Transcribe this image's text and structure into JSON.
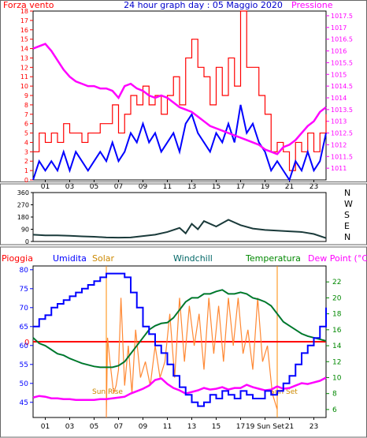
{
  "chart_data": [
    {
      "type": "line",
      "title": "24 hour graph day : 05 Maggio 2020",
      "left_axis_label": "Forza vento",
      "right_axis_label": "Pressione",
      "x_ticks": [
        "01",
        "03",
        "05",
        "07",
        "09",
        "11",
        "13",
        "15",
        "17",
        "19",
        "21",
        "23"
      ],
      "y_left_ticks": [
        "0",
        "1",
        "2",
        "3",
        "4",
        "5",
        "6",
        "7",
        "8",
        "9",
        "10",
        "11",
        "12",
        "13",
        "14",
        "15",
        "16",
        "17",
        "18"
      ],
      "y_right_ticks": [
        "1011",
        "1011.5",
        "1012",
        "1012.5",
        "1013",
        "1013.5",
        "1014",
        "1014.5",
        "1015",
        "1015.5",
        "1016",
        "1016.5",
        "1017",
        "1017.5"
      ],
      "ylim_left": [
        0,
        18
      ],
      "ylim_right": [
        1010.5,
        1017.7
      ],
      "xlim": [
        0,
        24
      ],
      "colors": {
        "gust": "#ff0000",
        "wind": "#0000ff",
        "pressure": "#ff00ff",
        "left_axis": "#ff0000",
        "right_axis": "#ff00ff",
        "title": "#0000cc"
      },
      "series": [
        {
          "key": "pressure",
          "x": [
            0,
            0.5,
            1,
            1.5,
            2,
            2.5,
            3,
            3.5,
            4,
            4.5,
            5,
            5.5,
            6,
            6.5,
            7,
            7.5,
            8,
            8.5,
            9,
            9.5,
            10,
            10.5,
            11,
            11.5,
            12,
            12.5,
            13,
            13.5,
            14,
            14.5,
            15,
            15.5,
            16,
            16.5,
            17,
            17.5,
            18,
            18.5,
            19,
            19.5,
            20,
            20.5,
            21,
            21.5,
            22,
            22.5,
            23,
            23.5,
            24
          ],
          "y": [
            1016.1,
            1016.2,
            1016.3,
            1016.0,
            1015.6,
            1015.2,
            1014.9,
            1014.7,
            1014.6,
            1014.5,
            1014.5,
            1014.4,
            1014.4,
            1014.3,
            1014.0,
            1014.5,
            1014.6,
            1014.4,
            1014.3,
            1014.1,
            1014.0,
            1014.1,
            1014.0,
            1013.8,
            1013.6,
            1013.5,
            1013.4,
            1013.2,
            1013.0,
            1012.8,
            1012.7,
            1012.6,
            1012.5,
            1012.4,
            1012.3,
            1012.2,
            1012.1,
            1012.0,
            1011.8,
            1011.7,
            1011.6,
            1011.9,
            1012.0,
            1012.2,
            1012.5,
            1012.8,
            1013.0,
            1013.4,
            1013.6
          ]
        },
        {
          "key": "wind",
          "x": [
            0,
            0.5,
            1,
            1.5,
            2,
            2.5,
            3,
            3.5,
            4,
            4.5,
            5,
            5.5,
            6,
            6.5,
            7,
            7.5,
            8,
            8.5,
            9,
            9.5,
            10,
            10.5,
            11,
            11.5,
            12,
            12.5,
            13,
            13.5,
            14,
            14.5,
            15,
            15.5,
            16,
            16.5,
            17,
            17.5,
            18,
            18.5,
            19,
            19.5,
            20,
            20.5,
            21,
            21.5,
            22,
            22.5,
            23,
            23.5,
            24
          ],
          "y": [
            0,
            2,
            1,
            2,
            1,
            3,
            1,
            3,
            2,
            1,
            2,
            3,
            2,
            4,
            2,
            3,
            5,
            4,
            6,
            4,
            5,
            3,
            4,
            5,
            3,
            6,
            7,
            5,
            4,
            3,
            5,
            4,
            6,
            4,
            8,
            5,
            6,
            4,
            3,
            1,
            2,
            1,
            0,
            2,
            1,
            3,
            1,
            2,
            5
          ]
        },
        {
          "key": "gust",
          "x": [
            0,
            0.5,
            1,
            1.5,
            2,
            2.5,
            3,
            3.5,
            4,
            4.5,
            5,
            5.5,
            6,
            6.5,
            7,
            7.5,
            8,
            8.5,
            9,
            9.5,
            10,
            10.5,
            11,
            11.5,
            12,
            12.5,
            13,
            13.5,
            14,
            14.5,
            15,
            15.5,
            16,
            16.5,
            17,
            17.5,
            18,
            18.5,
            19,
            19.5,
            20,
            20.5,
            21,
            21.5,
            22,
            22.5,
            23,
            23.5,
            24
          ],
          "y": [
            3,
            5,
            4,
            5,
            4,
            6,
            5,
            5,
            4,
            5,
            5,
            6,
            6,
            8,
            5,
            7,
            9,
            8,
            10,
            8,
            9,
            7,
            9,
            11,
            8,
            13,
            15,
            12,
            11,
            8,
            12,
            9,
            13,
            10,
            18,
            12,
            12,
            9,
            7,
            3,
            4,
            3,
            1,
            4,
            3,
            5,
            3,
            5,
            7
          ]
        }
      ]
    },
    {
      "type": "line",
      "y_ticks": [
        "0",
        "90",
        "180",
        "270",
        "360"
      ],
      "compass": [
        "N",
        "W",
        "S",
        "E",
        "N"
      ],
      "ylim": [
        0,
        360
      ],
      "xlim": [
        0,
        24
      ],
      "colors": {
        "line": "#1a3a3a",
        "axis": "#000000"
      },
      "series": [
        {
          "key": "direction",
          "x": [
            0,
            1,
            2,
            3,
            4,
            5,
            6,
            7,
            8,
            9,
            10,
            11,
            12,
            12.5,
            13,
            13.5,
            14,
            15,
            16,
            17,
            18,
            19,
            20,
            21,
            22,
            23,
            24
          ],
          "y": [
            50,
            45,
            45,
            42,
            38,
            35,
            30,
            28,
            30,
            40,
            50,
            70,
            100,
            60,
            130,
            90,
            150,
            110,
            160,
            120,
            95,
            85,
            80,
            75,
            70,
            55,
            25
          ]
        }
      ]
    },
    {
      "type": "line",
      "legend": [
        "Pioggia",
        "Umidita",
        "Solar",
        "Windchill",
        "Temperatura",
        "Dew Point (°C)"
      ],
      "x_ticks": [
        "01",
        "03",
        "05",
        "07",
        "09",
        "11",
        "13",
        "15",
        "17",
        "19 Sun Set",
        "21",
        "23"
      ],
      "y_left_ticks": [
        "45",
        "50",
        "55",
        "60",
        "65",
        "70",
        "75",
        "80"
      ],
      "y_right_ticks": [
        "6",
        "8",
        "10",
        "12",
        "14",
        "16",
        "18",
        "20",
        "22"
      ],
      "rain_label": "0",
      "annotations": {
        "sunrise": "Sun Rise",
        "sunset": "Sun Set"
      },
      "ylim_left": [
        41,
        81
      ],
      "ylim_right": [
        5,
        24
      ],
      "xlim": [
        0,
        24
      ],
      "colors": {
        "rain": "#ff0000",
        "humidity": "#0000ff",
        "solar": "#ff8833",
        "windchill": "#006666",
        "temperature": "#008800",
        "dewpoint": "#ff00ff",
        "annotation": "#cc8800",
        "markers": "#ff8800"
      },
      "series": [
        {
          "key": "humidity",
          "x": [
            0,
            0.5,
            1,
            1.5,
            2,
            2.5,
            3,
            3.5,
            4,
            4.5,
            5,
            5.5,
            6,
            6.5,
            7,
            7.5,
            8,
            8.5,
            9,
            9.5,
            10,
            10.5,
            11,
            11.5,
            12,
            12.5,
            13,
            13.5,
            14,
            14.5,
            15,
            15.5,
            16,
            16.5,
            17,
            17.5,
            18,
            18.5,
            19,
            19.5,
            20,
            20.5,
            21,
            21.5,
            22,
            22.5,
            23,
            23.5,
            24
          ],
          "y": [
            65,
            67,
            68,
            70,
            71,
            72,
            73,
            74,
            75,
            76,
            77,
            78,
            79,
            79,
            79,
            78,
            74,
            70,
            65,
            63,
            60,
            58,
            55,
            52,
            49,
            47,
            45,
            44,
            45,
            47,
            46,
            48,
            47,
            46,
            48,
            47,
            46,
            46,
            48,
            47,
            48,
            50,
            52,
            55,
            58,
            60,
            62,
            65,
            70
          ]
        },
        {
          "key": "windchill",
          "x": [
            0,
            0.5,
            1,
            1.5,
            2,
            2.5,
            3,
            3.5,
            4,
            4.5,
            5,
            5.5,
            6,
            6.5,
            7,
            7.5,
            8,
            8.5,
            9,
            9.5,
            10,
            10.5,
            11,
            11.5,
            12,
            12.5,
            13,
            13.5,
            14,
            14.5,
            15,
            15.5,
            16,
            16.5,
            17,
            17.5,
            18,
            18.5,
            19,
            19.5,
            20,
            20.5,
            21,
            21.5,
            22,
            22.5,
            23,
            23.5,
            24
          ],
          "y": [
            15,
            14.3,
            14,
            13.5,
            13,
            12.8,
            12.4,
            12.1,
            11.8,
            11.6,
            11.4,
            11.3,
            11.3,
            11.3,
            11.5,
            12,
            13,
            14,
            15,
            16,
            16.5,
            16.8,
            16.9,
            17.5,
            18.5,
            19.5,
            20,
            20,
            20.5,
            20.5,
            20.8,
            21,
            20.5,
            20.5,
            20.7,
            20.5,
            20,
            19.8,
            19.5,
            19,
            18,
            17,
            16.5,
            16,
            15.5,
            15.2,
            15,
            14.8,
            14.6
          ]
        },
        {
          "key": "dewpoint",
          "x": [
            0,
            0.5,
            1,
            1.5,
            2,
            2.5,
            3,
            3.5,
            4,
            4.5,
            5,
            5.5,
            6,
            6.5,
            7,
            7.5,
            8,
            8.5,
            9,
            9.5,
            10,
            10.5,
            11,
            11.5,
            12,
            12.5,
            13,
            13.5,
            14,
            14.5,
            15,
            15.5,
            16,
            16.5,
            17,
            17.5,
            18,
            18.5,
            19,
            19.5,
            20,
            20.5,
            21,
            21.5,
            22,
            22.5,
            23,
            23.5,
            24
          ],
          "y": [
            7.5,
            7.7,
            7.6,
            7.4,
            7.4,
            7.3,
            7.3,
            7.2,
            7.2,
            7.2,
            7.2,
            7.3,
            7.3,
            7.4,
            7.5,
            7.6,
            8,
            8.3,
            8.6,
            9.0,
            9.7,
            9.9,
            9.2,
            8.7,
            8.4,
            8.0,
            8.2,
            8.4,
            8.7,
            8.5,
            8.6,
            8.8,
            8.5,
            8.7,
            8.7,
            9.1,
            8.8,
            8.6,
            8.4,
            8.5,
            8.9,
            8.6,
            8.7,
            9.0,
            9.3,
            9.2,
            9.4,
            9.6,
            10.0
          ]
        },
        {
          "key": "solar",
          "x": [
            6,
            6.1,
            6.3,
            6.6,
            6.8,
            7.0,
            7.2,
            7.5,
            7.8,
            8.1,
            8.4,
            8.8,
            9.2,
            9.6,
            10.0,
            10.4,
            10.8,
            11.2,
            11.6,
            12.0,
            12.4,
            12.8,
            13.2,
            13.6,
            14.0,
            14.4,
            14.8,
            15.2,
            15.6,
            16.0,
            16.4,
            16.8,
            17.2,
            17.6,
            18.0,
            18.4,
            18.8,
            19.2,
            19.6,
            20.0
          ],
          "y": [
            5,
            15,
            12,
            8,
            9,
            11,
            20,
            9,
            14,
            8,
            16,
            10,
            12,
            9,
            14,
            10,
            12,
            18,
            10,
            20,
            12,
            19,
            14,
            18,
            11,
            20,
            13,
            19,
            12,
            20,
            14,
            20,
            13,
            16,
            11,
            20,
            12,
            14,
            8,
            6
          ]
        }
      ]
    }
  ]
}
